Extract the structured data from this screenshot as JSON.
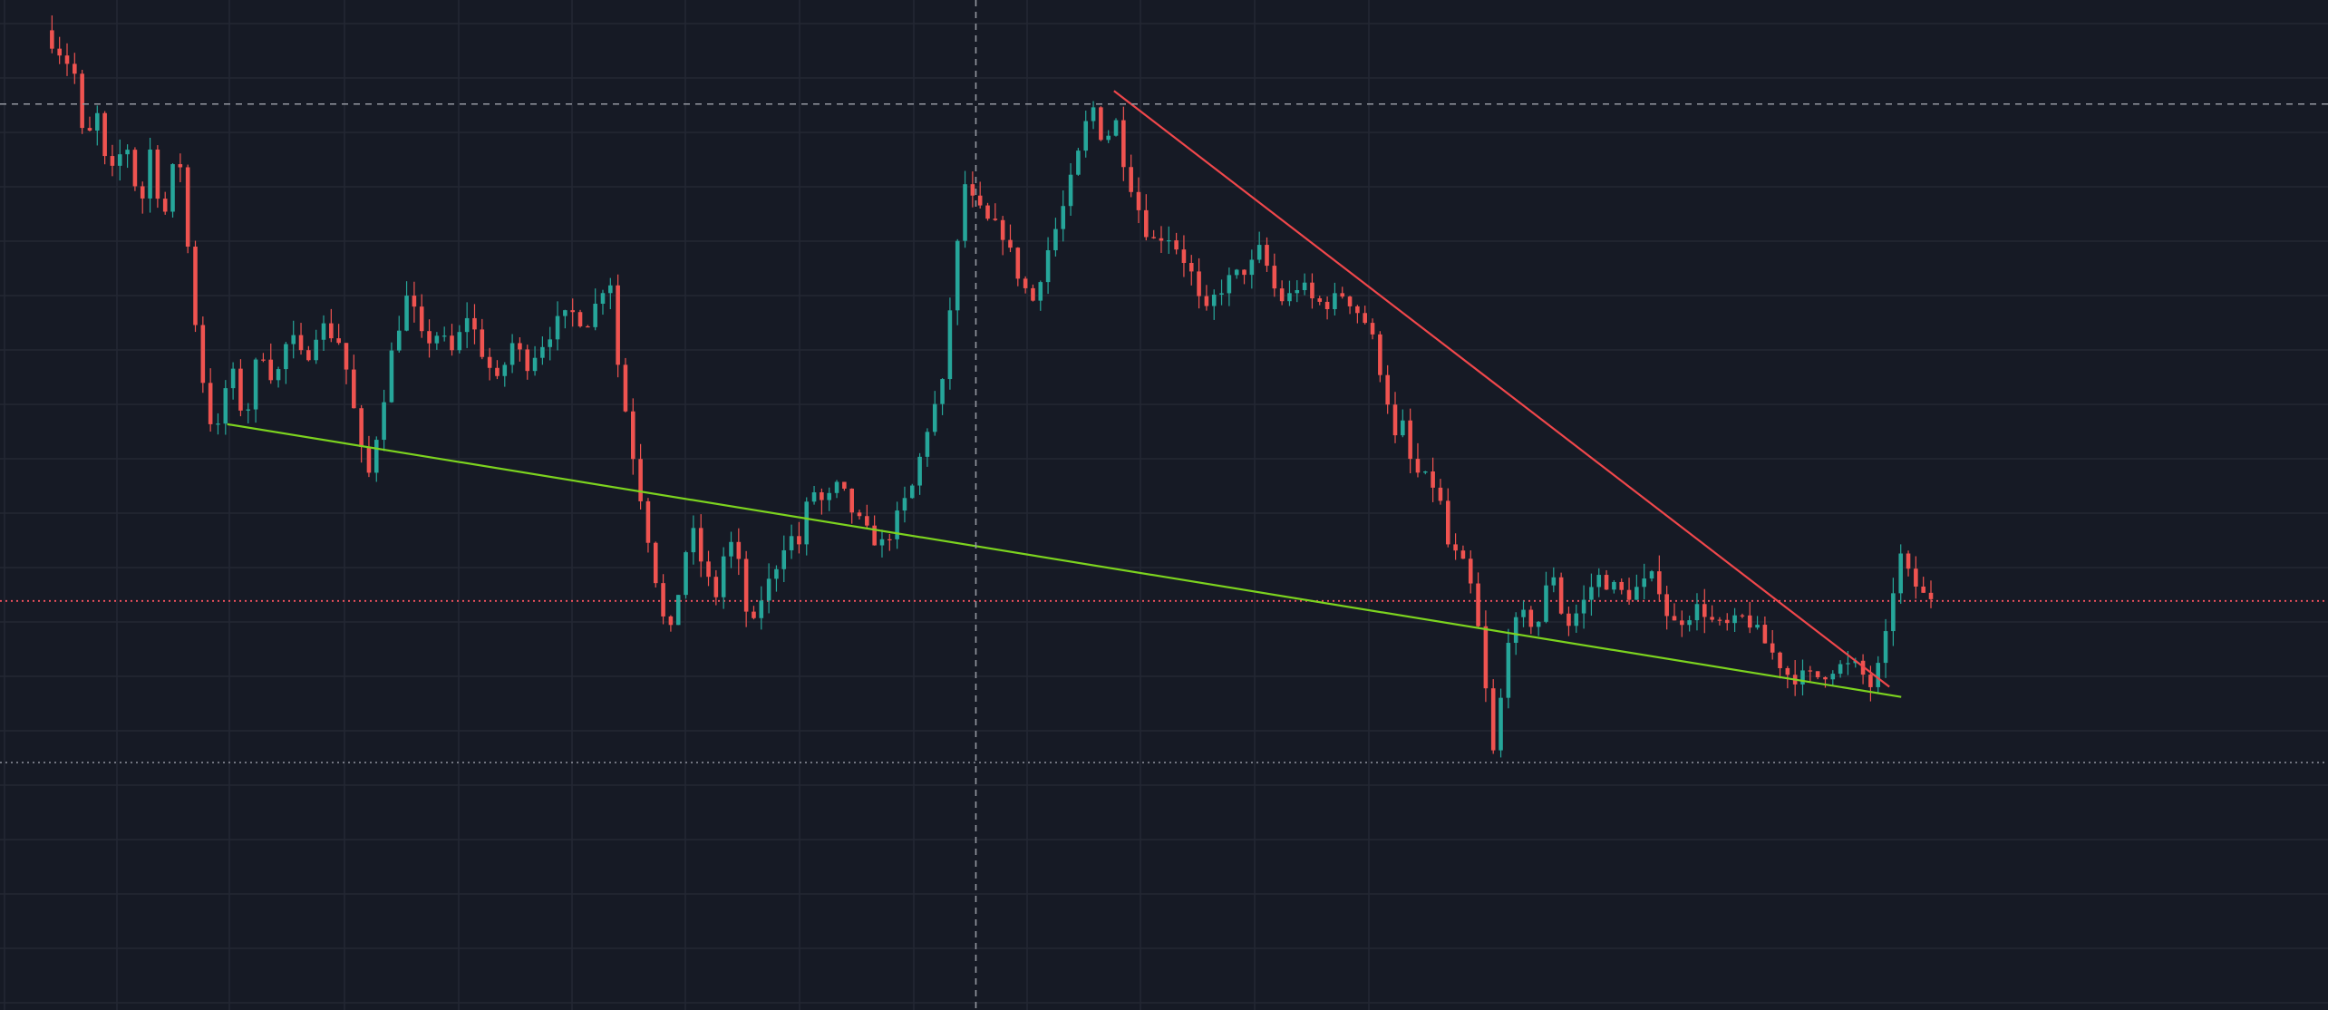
{
  "chart_data": {
    "type": "candlestick",
    "grid": true,
    "crosshair": true,
    "title": "",
    "xlabel": "",
    "ylabel": "",
    "ylim": [
      0,
      100
    ],
    "x_range": [
      0,
      1300
    ],
    "colors": {
      "background": "#161a25",
      "grid": "#232733",
      "up": "#26a69a",
      "down": "#ef5350",
      "crosshair": "#9598a1",
      "support_line": "#7cd31f",
      "resistance_line": "#f0474b",
      "price_line_red": "#f7525f",
      "price_line_gray": "#787b86"
    },
    "anchors": [
      [
        35,
        97
      ],
      [
        55,
        93
      ],
      [
        62,
        85
      ],
      [
        70,
        89
      ],
      [
        78,
        82
      ],
      [
        90,
        86
      ],
      [
        100,
        79
      ],
      [
        105,
        86
      ],
      [
        115,
        78
      ],
      [
        125,
        86
      ],
      [
        135,
        70
      ],
      [
        142,
        62
      ],
      [
        150,
        56
      ],
      [
        160,
        64
      ],
      [
        170,
        58
      ],
      [
        180,
        66
      ],
      [
        190,
        62
      ],
      [
        200,
        67
      ],
      [
        210,
        64
      ],
      [
        220,
        68
      ],
      [
        235,
        66
      ],
      [
        245,
        58
      ],
      [
        252,
        52
      ],
      [
        260,
        58
      ],
      [
        270,
        66
      ],
      [
        280,
        71
      ],
      [
        290,
        66
      ],
      [
        300,
        67
      ],
      [
        310,
        65
      ],
      [
        320,
        69
      ],
      [
        330,
        65
      ],
      [
        340,
        62
      ],
      [
        350,
        66
      ],
      [
        360,
        64
      ],
      [
        370,
        66
      ],
      [
        380,
        68
      ],
      [
        390,
        69
      ],
      [
        400,
        68
      ],
      [
        410,
        71
      ],
      [
        415,
        74
      ],
      [
        420,
        65
      ],
      [
        430,
        56
      ],
      [
        440,
        48
      ],
      [
        450,
        40
      ],
      [
        455,
        36
      ],
      [
        460,
        40
      ],
      [
        470,
        48
      ],
      [
        480,
        43
      ],
      [
        487,
        41
      ],
      [
        495,
        47
      ],
      [
        505,
        43
      ],
      [
        510,
        36
      ],
      [
        515,
        40
      ],
      [
        525,
        43
      ],
      [
        535,
        47
      ],
      [
        545,
        46
      ],
      [
        550,
        52
      ],
      [
        560,
        50
      ],
      [
        570,
        52
      ],
      [
        580,
        49
      ],
      [
        590,
        47
      ],
      [
        600,
        46
      ],
      [
        610,
        49
      ],
      [
        620,
        52
      ],
      [
        630,
        58
      ],
      [
        640,
        62
      ],
      [
        645,
        70
      ],
      [
        650,
        76
      ],
      [
        655,
        82
      ],
      [
        660,
        80
      ],
      [
        670,
        78
      ],
      [
        680,
        77
      ],
      [
        690,
        73
      ],
      [
        700,
        70
      ],
      [
        710,
        75
      ],
      [
        720,
        79
      ],
      [
        730,
        84
      ],
      [
        740,
        90
      ],
      [
        745,
        87
      ],
      [
        750,
        86
      ],
      [
        755,
        89
      ],
      [
        760,
        85
      ],
      [
        770,
        80
      ],
      [
        780,
        76
      ],
      [
        790,
        77
      ],
      [
        800,
        75
      ],
      [
        810,
        72
      ],
      [
        815,
        68
      ],
      [
        820,
        70
      ],
      [
        830,
        72
      ],
      [
        840,
        73
      ],
      [
        850,
        74
      ],
      [
        855,
        76
      ],
      [
        860,
        72
      ],
      [
        870,
        70
      ],
      [
        880,
        72
      ],
      [
        890,
        70
      ],
      [
        900,
        70
      ],
      [
        910,
        71
      ],
      [
        920,
        69
      ],
      [
        925,
        68
      ],
      [
        930,
        66
      ],
      [
        940,
        60
      ],
      [
        945,
        56
      ],
      [
        950,
        58
      ],
      [
        955,
        54
      ],
      [
        960,
        53
      ],
      [
        970,
        52
      ],
      [
        975,
        50
      ],
      [
        980,
        46
      ],
      [
        990,
        44
      ],
      [
        995,
        42
      ],
      [
        1000,
        38
      ],
      [
        1005,
        32
      ],
      [
        1010,
        25
      ],
      [
        1015,
        30
      ],
      [
        1020,
        37
      ],
      [
        1030,
        39
      ],
      [
        1040,
        38
      ],
      [
        1050,
        44
      ],
      [
        1055,
        40
      ],
      [
        1060,
        38
      ],
      [
        1070,
        40
      ],
      [
        1080,
        43
      ],
      [
        1090,
        42
      ],
      [
        1100,
        41
      ],
      [
        1110,
        42
      ],
      [
        1120,
        43
      ],
      [
        1130,
        38
      ],
      [
        1140,
        39
      ],
      [
        1150,
        40
      ],
      [
        1160,
        38
      ],
      [
        1170,
        38
      ],
      [
        1180,
        39
      ],
      [
        1190,
        37
      ],
      [
        1200,
        35
      ],
      [
        1210,
        33
      ],
      [
        1220,
        33
      ],
      [
        1230,
        33
      ],
      [
        1240,
        34
      ],
      [
        1250,
        34
      ],
      [
        1255,
        34
      ],
      [
        1260,
        33
      ],
      [
        1265,
        32
      ],
      [
        1270,
        34
      ],
      [
        1275,
        37
      ],
      [
        1280,
        42
      ],
      [
        1285,
        45
      ],
      [
        1290,
        43
      ],
      [
        1295,
        42
      ],
      [
        1300,
        41
      ]
    ],
    "candle_count": 250,
    "trendlines": [
      {
        "color": "#7cd31f",
        "start": [
          153,
          58
        ],
        "end": [
          1280,
          31
        ]
      },
      {
        "color": "#f0474b",
        "start": [
          750,
          91
        ],
        "end": [
          1272,
          32
        ]
      }
    ],
    "horizontal_lines": [
      {
        "y": 40.5,
        "color": "#f7525f",
        "style": "dotted"
      },
      {
        "y": 24.5,
        "color": "#787b86",
        "style": "dotted"
      }
    ],
    "crosshair_position": {
      "x": 657,
      "y": 89.7
    }
  }
}
